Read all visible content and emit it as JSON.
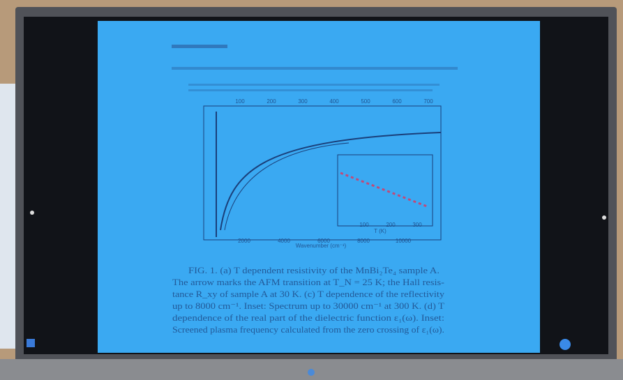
{
  "document": {
    "figure": {
      "x_label": "Wavenumber (cm⁻¹)",
      "x_ticks": [
        "2000",
        "4000",
        "6000",
        "8000",
        "10000"
      ],
      "top_ticks": [
        "100",
        "200",
        "300",
        "400",
        "500",
        "600",
        "700"
      ],
      "inset_x_label": "T (K)",
      "inset_x_ticks": [
        "100",
        "200",
        "300"
      ]
    },
    "caption": [
      "FIG. 1. (a) T dependent resistivity of the MnBi₂Te₄ sample A.",
      "The arrow marks the AFM transition at T_N = 25 K; the Hall resis-",
      "tance R_xy of sample A at 30 K. (c) T dependence of the reflectivity",
      "up to 8000 cm⁻¹. Inset: Spectrum up to 30000 cm⁻¹ at 300 K. (d) T",
      "dependence of the real part of the dielectric function ε₁(ω). Inset:",
      "Screened plasma frequency calculated from the zero crossing of ε₁(ω)."
    ]
  }
}
